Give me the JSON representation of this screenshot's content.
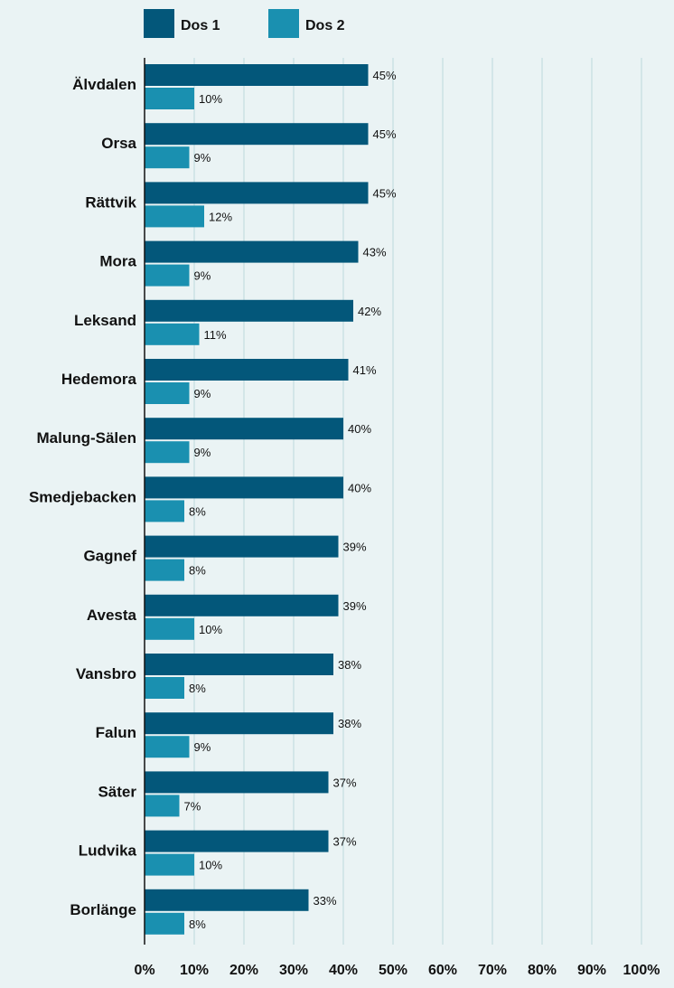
{
  "chart_data": {
    "type": "bar",
    "orientation": "horizontal",
    "categories": [
      "Älvdalen",
      "Orsa",
      "Rättvik",
      "Mora",
      "Leksand",
      "Hedemora",
      "Malung-Sälen",
      "Smedjebacken",
      "Gagnef",
      "Avesta",
      "Vansbro",
      "Falun",
      "Säter",
      "Ludvika",
      "Borlänge"
    ],
    "series": [
      {
        "name": "Dos 1",
        "color": "#03577a",
        "values": [
          45,
          45,
          45,
          43,
          42,
          41,
          40,
          40,
          39,
          39,
          38,
          38,
          37,
          37,
          33
        ]
      },
      {
        "name": "Dos 2",
        "color": "#1a90b0",
        "values": [
          10,
          9,
          12,
          9,
          11,
          9,
          9,
          8,
          8,
          10,
          8,
          9,
          7,
          10,
          8
        ]
      }
    ],
    "data_labels": {
      "Dos 1": [
        "45%",
        "45%",
        "45%",
        "43%",
        "42%",
        "41%",
        "40%",
        "40%",
        "39%",
        "39%",
        "38%",
        "38%",
        "37%",
        "37%",
        "33%"
      ],
      "Dos 2": [
        "10%",
        "9%",
        "12%",
        "9%",
        "11%",
        "9%",
        "9%",
        "8%",
        "8%",
        "10%",
        "8%",
        "9%",
        "7%",
        "10%",
        "8%"
      ]
    },
    "x_ticks": [
      0,
      10,
      20,
      30,
      40,
      50,
      60,
      70,
      80,
      90,
      100
    ],
    "x_tick_labels": [
      "0%",
      "10%",
      "20%",
      "30%",
      "40%",
      "50%",
      "60%",
      "70%",
      "80%",
      "90%",
      "100%"
    ],
    "xlim": [
      0,
      100
    ],
    "grid": true,
    "legend_position": "top-left",
    "title": "",
    "xlabel": "",
    "ylabel": ""
  }
}
